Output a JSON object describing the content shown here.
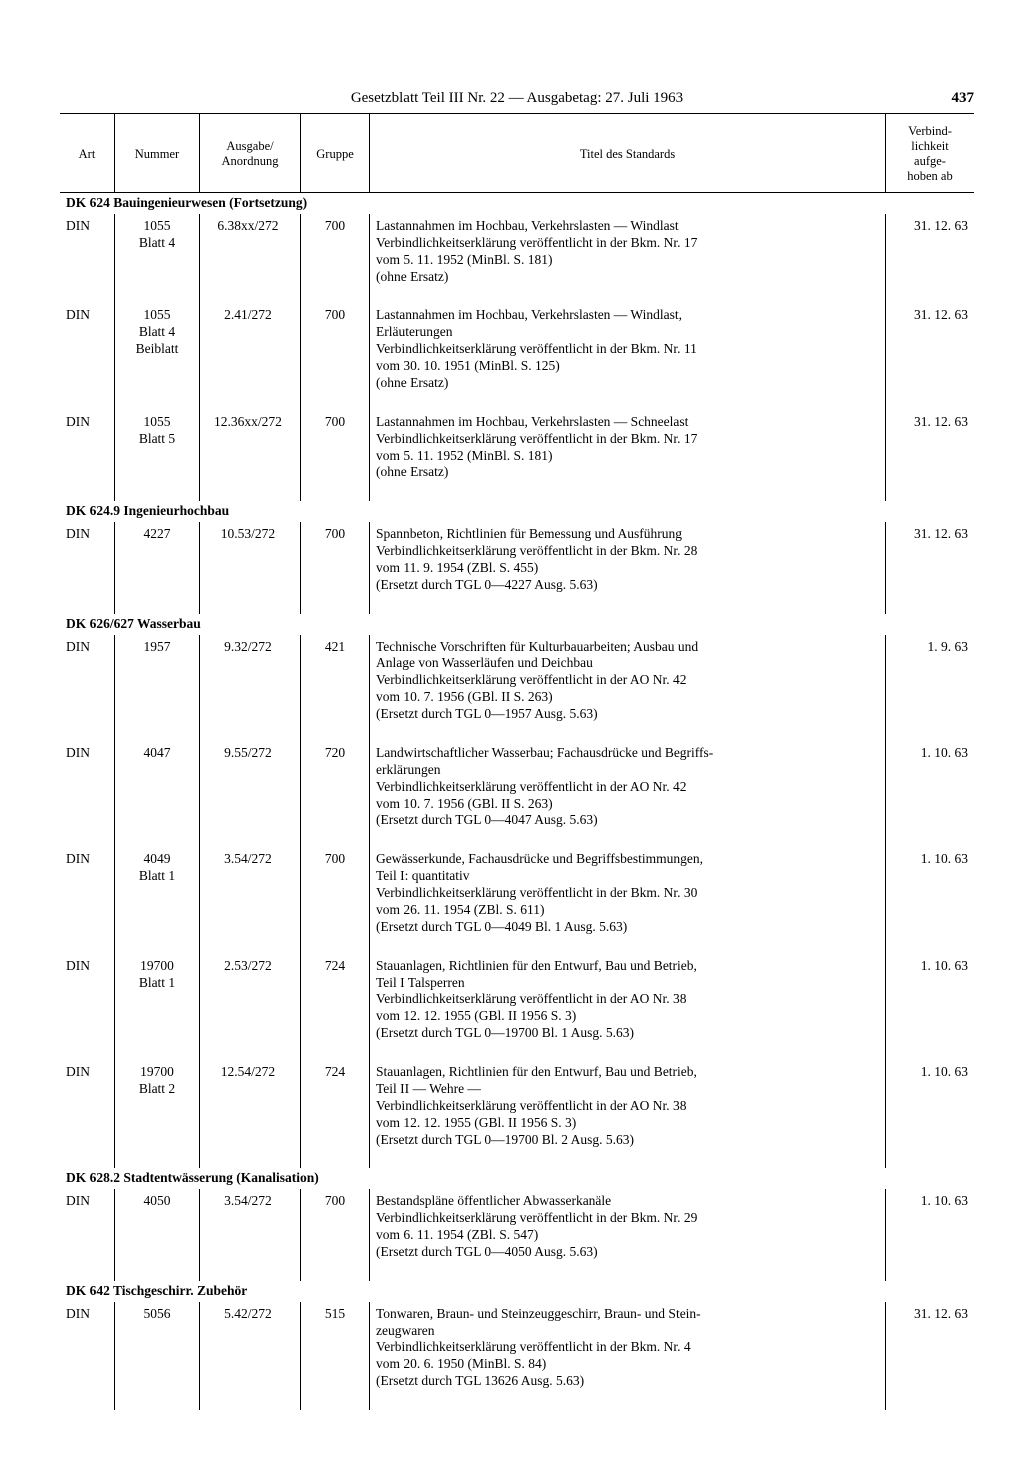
{
  "header": {
    "title": "Gesetzblatt Teil III Nr. 22 — Ausgabetag: 27. Juli 1963",
    "page": "437"
  },
  "columns": {
    "art": "Art",
    "nummer": "Nummer",
    "ausgabe": "Ausgabe/\nAnordnung",
    "gruppe": "Gruppe",
    "titel": "Titel des Standards",
    "verbind": "Verbind-\nlichkeit\naufge-\nhoben ab"
  },
  "sections": [
    {
      "heading": "DK 624 Bauingenieurwesen (Fortsetzung)",
      "heading_html": "<span class='bold'>DK 624 Bauingenieurwesen</span> (Fortsetzung)",
      "rows": [
        {
          "art": "DIN",
          "nummer": "1055\nBlatt 4",
          "ausgabe": "6.38xx/272",
          "gruppe": "700",
          "titel": "Lastannahmen im Hochbau, Verkehrslasten — Windlast\nVerbindlichkeitserklärung veröffentlicht in der Bkm. Nr. 17\nvom 5. 11. 1952 (MinBl. S. 181)\n(ohne Ersatz)",
          "date": "31. 12. 63"
        },
        {
          "art": "DIN",
          "nummer": "1055\nBlatt 4\nBeiblatt",
          "ausgabe": "2.41/272",
          "gruppe": "700",
          "titel": "Lastannahmen im Hochbau, Verkehrslasten — Windlast,\nErläuterungen\nVerbindlichkeitserklärung veröffentlicht in der Bkm. Nr. 11\nvom 30. 10. 1951 (MinBl. S. 125)\n(ohne Ersatz)",
          "date": "31. 12. 63"
        },
        {
          "art": "DIN",
          "nummer": "1055\nBlatt 5",
          "ausgabe": "12.36xx/272",
          "gruppe": "700",
          "titel": "Lastannahmen im Hochbau, Verkehrslasten — Schneelast\nVerbindlichkeitserklärung veröffentlicht in der Bkm. Nr. 17\nvom 5. 11. 1952 (MinBl. S. 181)\n(ohne Ersatz)",
          "date": "31. 12. 63"
        }
      ]
    },
    {
      "heading": "DK 624.9 Ingenieurhochbau",
      "heading_html": "<span class='bold'>DK 624.9 Ingenieurhochbau</span>",
      "rows": [
        {
          "art": "DIN",
          "nummer": "4227",
          "ausgabe": "10.53/272",
          "gruppe": "700",
          "titel": "Spannbeton, Richtlinien für Bemessung und Ausführung\nVerbindlichkeitserklärung veröffentlicht in der Bkm. Nr. 28\nvom 11. 9. 1954 (ZBl. S. 455)\n(Ersetzt durch TGL 0—4227 Ausg. 5.63)",
          "date": "31. 12. 63"
        }
      ]
    },
    {
      "heading": "DK 626/627 Wasserbau",
      "heading_html": "<span class='bold'>DK 626/627 Wasserbau</span>",
      "rows": [
        {
          "art": "DIN",
          "nummer": "1957",
          "ausgabe": "9.32/272",
          "gruppe": "421",
          "titel": "Technische Vorschriften für Kulturbauarbeiten; Ausbau und\nAnlage von Wasserläufen und Deichbau\nVerbindlichkeitserklärung veröffentlicht in der AO Nr. 42\nvom 10. 7. 1956 (GBl. II S. 263)\n(Ersetzt durch TGL 0—1957 Ausg. 5.63)",
          "date": "1.  9. 63"
        },
        {
          "art": "DIN",
          "nummer": "4047",
          "ausgabe": "9.55/272",
          "gruppe": "720",
          "titel": "Landwirtschaftlicher Wasserbau; Fachausdrücke und Begriffs-\nerklärungen\nVerbindlichkeitserklärung veröffentlicht in der AO Nr. 42\nvom 10. 7. 1956 (GBl. II S. 263)\n(Ersetzt durch TGL 0—4047 Ausg. 5.63)",
          "date": "1. 10. 63"
        },
        {
          "art": "DIN",
          "nummer": "4049\nBlatt 1",
          "ausgabe": "3.54/272",
          "gruppe": "700",
          "titel": "Gewässerkunde, Fachausdrücke und Begriffsbestimmungen,\nTeil I: quantitativ\nVerbindlichkeitserklärung veröffentlicht in der Bkm. Nr. 30\nvom 26. 11. 1954 (ZBl. S. 611)\n(Ersetzt durch TGL 0—4049 Bl. 1 Ausg. 5.63)",
          "date": "1. 10. 63"
        },
        {
          "art": "DIN",
          "nummer": "19700\nBlatt 1",
          "ausgabe": "2.53/272",
          "gruppe": "724",
          "titel": "Stauanlagen, Richtlinien für den Entwurf, Bau und Betrieb,\nTeil I Talsperren\nVerbindlichkeitserklärung veröffentlicht in der AO Nr. 38\nvom 12. 12. 1955 (GBl. II 1956 S. 3)\n(Ersetzt durch TGL 0—19700 Bl. 1 Ausg. 5.63)",
          "date": "1. 10. 63"
        },
        {
          "art": "DIN",
          "nummer": "19700\nBlatt 2",
          "ausgabe": "12.54/272",
          "gruppe": "724",
          "titel": "Stauanlagen, Richtlinien für den Entwurf, Bau und Betrieb,\nTeil II — Wehre —\nVerbindlichkeitserklärung veröffentlicht in der AO Nr. 38\nvom 12. 12. 1955 (GBl. II 1956 S. 3)\n(Ersetzt durch TGL 0—19700 Bl. 2 Ausg. 5.63)",
          "date": "1. 10. 63"
        }
      ]
    },
    {
      "heading": "DK 628.2 Stadtentwässerung (Kanalisation)",
      "heading_html": "<span class='bold'>DK 628.2 Stadtentwässerung (Kanalisation)</span>",
      "rows": [
        {
          "art": "DIN",
          "nummer": "4050",
          "ausgabe": "3.54/272",
          "gruppe": "700",
          "titel": "Bestandspläne öffentlicher Abwasserkanäle\nVerbindlichkeitserklärung veröffentlicht in der Bkm. Nr. 29\nvom 6. 11. 1954 (ZBl. S. 547)\n(Ersetzt durch TGL 0—4050 Ausg. 5.63)",
          "date": "1. 10. 63"
        }
      ]
    },
    {
      "heading": "DK 642 Tischgeschirr. Zubehör",
      "heading_html": "<span class='bold'>DK 642 Tischgeschirr. Zubehör</span>",
      "rows": [
        {
          "art": "DIN",
          "nummer": "5056",
          "ausgabe": "5.42/272",
          "gruppe": "515",
          "titel": "Tonwaren, Braun- und Steinzeuggeschirr, Braun- und Stein-\nzeugwaren\nVerbindlichkeitserklärung veröffentlicht in der Bkm. Nr. 4\nvom 20. 6. 1950 (MinBl. S. 84)\n(Ersetzt durch TGL 13626 Ausg. 5.63)",
          "date": "31. 12. 63"
        }
      ]
    }
  ]
}
